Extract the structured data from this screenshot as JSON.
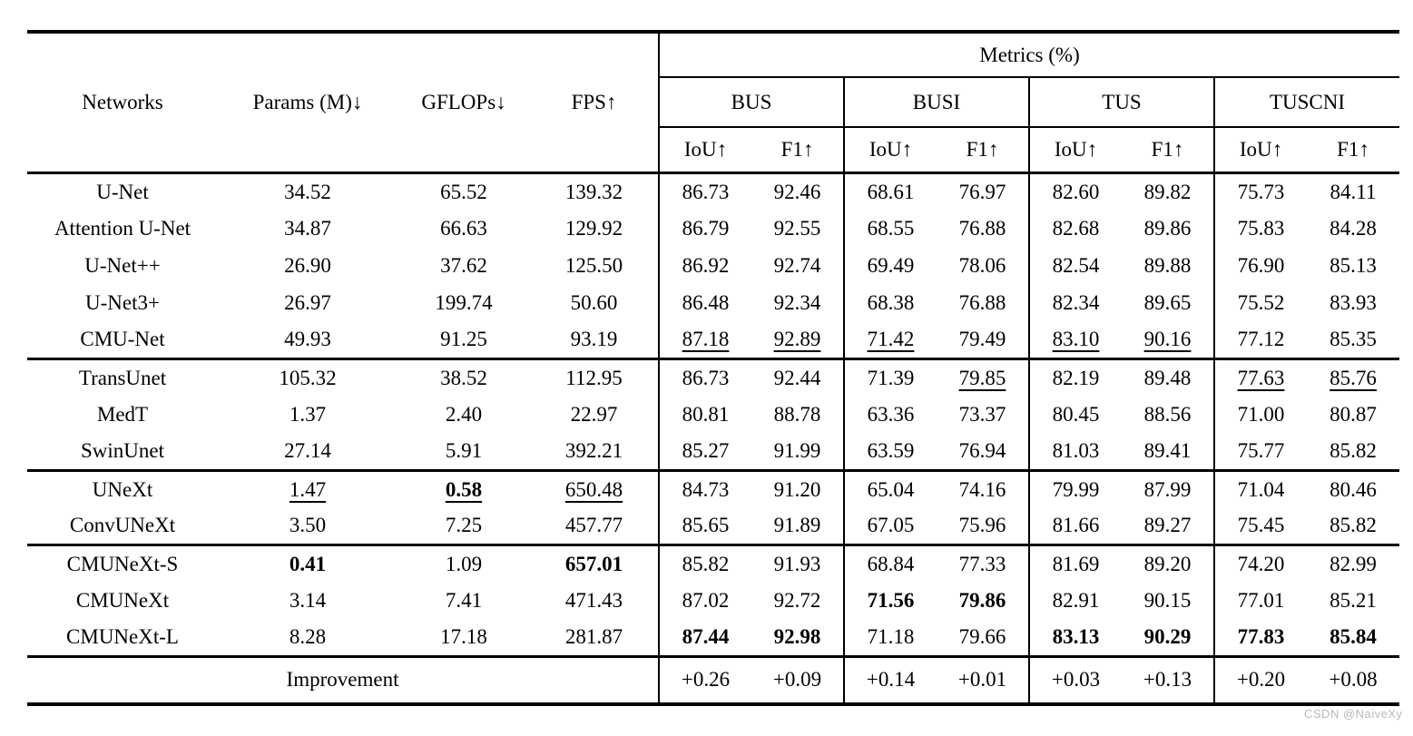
{
  "watermark": {
    "text": "CSDN @NaiveXy",
    "color": "#b9b9b9"
  },
  "table": {
    "header": {
      "networks": "Networks",
      "params": "Params (M)↓",
      "gflops": "GFLOPs↓",
      "fps": "FPS↑",
      "metrics": "Metrics (%)",
      "datasets": [
        "BUS",
        "BUSI",
        "TUS",
        "TUSCNI"
      ],
      "iou_label": "IoU↑",
      "f1_label": "F1↑"
    },
    "groups": [
      {
        "rows": [
          {
            "name": "U-Net",
            "cells": [
              "34.52",
              "65.52",
              "139.32",
              "86.73",
              "92.46",
              "68.61",
              "76.97",
              "82.60",
              "89.82",
              "75.73",
              "84.11"
            ],
            "styles": [
              "",
              "",
              "",
              "",
              "",
              "",
              "",
              "",
              "",
              "",
              ""
            ]
          },
          {
            "name": "Attention U-Net",
            "cells": [
              "34.87",
              "66.63",
              "129.92",
              "86.79",
              "92.55",
              "68.55",
              "76.88",
              "82.68",
              "89.86",
              "75.83",
              "84.28"
            ],
            "styles": [
              "",
              "",
              "",
              "",
              "",
              "",
              "",
              "",
              "",
              "",
              ""
            ]
          },
          {
            "name": "U-Net++",
            "cells": [
              "26.90",
              "37.62",
              "125.50",
              "86.92",
              "92.74",
              "69.49",
              "78.06",
              "82.54",
              "89.88",
              "76.90",
              "85.13"
            ],
            "styles": [
              "",
              "",
              "",
              "",
              "",
              "",
              "",
              "",
              "",
              "",
              ""
            ]
          },
          {
            "name": "U-Net3+",
            "cells": [
              "26.97",
              "199.74",
              "50.60",
              "86.48",
              "92.34",
              "68.38",
              "76.88",
              "82.34",
              "89.65",
              "75.52",
              "83.93"
            ],
            "styles": [
              "",
              "",
              "",
              "",
              "",
              "",
              "",
              "",
              "",
              "",
              ""
            ]
          },
          {
            "name": "CMU-Net",
            "cells": [
              "49.93",
              "91.25",
              "93.19",
              "87.18",
              "92.89",
              "71.42",
              "79.49",
              "83.10",
              "90.16",
              "77.12",
              "85.35"
            ],
            "styles": [
              "",
              "",
              "",
              "u",
              "u",
              "u",
              "",
              "u",
              "u",
              "",
              ""
            ]
          }
        ]
      },
      {
        "rows": [
          {
            "name": "TransUnet",
            "cells": [
              "105.32",
              "38.52",
              "112.95",
              "86.73",
              "92.44",
              "71.39",
              "79.85",
              "82.19",
              "89.48",
              "77.63",
              "85.76"
            ],
            "styles": [
              "",
              "",
              "",
              "",
              "",
              "",
              "u",
              "",
              "",
              "u",
              "u"
            ]
          },
          {
            "name": "MedT",
            "cells": [
              "1.37",
              "2.40",
              "22.97",
              "80.81",
              "88.78",
              "63.36",
              "73.37",
              "80.45",
              "88.56",
              "71.00",
              "80.87"
            ],
            "styles": [
              "",
              "",
              "",
              "",
              "",
              "",
              "",
              "",
              "",
              "",
              ""
            ]
          },
          {
            "name": "SwinUnet",
            "cells": [
              "27.14",
              "5.91",
              "392.21",
              "85.27",
              "91.99",
              "63.59",
              "76.94",
              "81.03",
              "89.41",
              "75.77",
              "85.82"
            ],
            "styles": [
              "",
              "",
              "",
              "",
              "",
              "",
              "",
              "",
              "",
              "",
              ""
            ]
          }
        ]
      },
      {
        "rows": [
          {
            "name": "UNeXt",
            "cells": [
              "1.47",
              "0.58",
              "650.48",
              "84.73",
              "91.20",
              "65.04",
              "74.16",
              "79.99",
              "87.99",
              "71.04",
              "80.46"
            ],
            "styles": [
              "u",
              "bu",
              "u",
              "",
              "",
              "",
              "",
              "",
              "",
              "",
              ""
            ]
          },
          {
            "name": "ConvUNeXt",
            "cells": [
              "3.50",
              "7.25",
              "457.77",
              "85.65",
              "91.89",
              "67.05",
              "75.96",
              "81.66",
              "89.27",
              "75.45",
              "85.82"
            ],
            "styles": [
              "",
              "",
              "",
              "",
              "",
              "",
              "",
              "",
              "",
              "",
              ""
            ]
          }
        ]
      },
      {
        "rows": [
          {
            "name": "CMUNeXt-S",
            "cells": [
              "0.41",
              "1.09",
              "657.01",
              "85.82",
              "91.93",
              "68.84",
              "77.33",
              "81.69",
              "89.20",
              "74.20",
              "82.99"
            ],
            "styles": [
              "b",
              "",
              "b",
              "",
              "",
              "",
              "",
              "",
              "",
              "",
              ""
            ]
          },
          {
            "name": "CMUNeXt",
            "cells": [
              "3.14",
              "7.41",
              "471.43",
              "87.02",
              "92.72",
              "71.56",
              "79.86",
              "82.91",
              "90.15",
              "77.01",
              "85.21"
            ],
            "styles": [
              "",
              "",
              "",
              "",
              "",
              "b",
              "b",
              "",
              "",
              "",
              ""
            ]
          },
          {
            "name": "CMUNeXt-L",
            "cells": [
              "8.28",
              "17.18",
              "281.87",
              "87.44",
              "92.98",
              "71.18",
              "79.66",
              "83.13",
              "90.29",
              "77.83",
              "85.84"
            ],
            "styles": [
              "",
              "",
              "",
              "b",
              "b",
              "",
              "",
              "b",
              "b",
              "b",
              "b"
            ]
          }
        ]
      }
    ],
    "improvement": {
      "label": "Improvement",
      "values": [
        "+0.26",
        "+0.09",
        "+0.14",
        "+0.01",
        "+0.03",
        "+0.13",
        "+0.20",
        "+0.08"
      ]
    }
  }
}
